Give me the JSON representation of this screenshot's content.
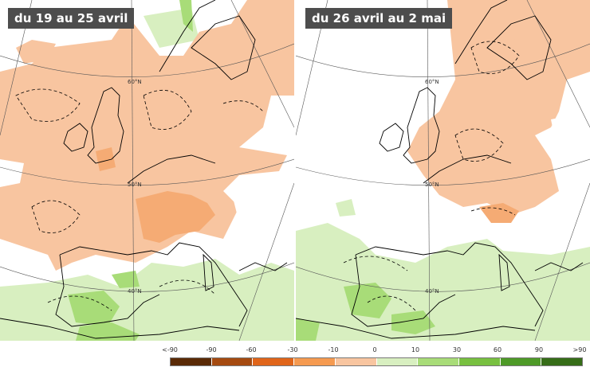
{
  "panels": [
    {
      "label": "du 19 au 25 avril",
      "lat_labels": [
        "60°N",
        "50°N",
        "40°N"
      ]
    },
    {
      "label": "du 26 avril au 2 mai",
      "lat_labels": [
        "60°N",
        "50°N",
        "40°N"
      ]
    }
  ],
  "legend": {
    "ticks": [
      "<-90",
      "-90",
      "-60",
      "-30",
      "-10",
      "0",
      "10",
      "30",
      "60",
      "90",
      ">90"
    ],
    "colors": [
      "#5a2a06",
      "#a54a10",
      "#e0651a",
      "#f59a50",
      "#f8c5a0",
      "#ffffff",
      "#d8efc0",
      "#a8dc78",
      "#78c040",
      "#4e9a28",
      "#366d18"
    ]
  }
}
